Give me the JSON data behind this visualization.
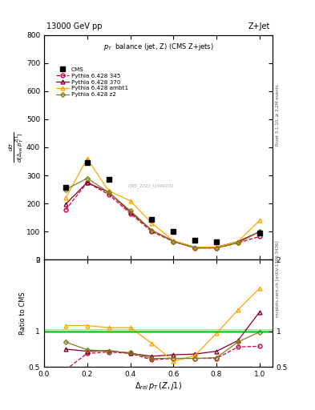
{
  "title_top": "13000 GeV pp",
  "title_right": "Z+Jet",
  "plot_title": "p_{T}  balance (jet, Z) (CMS Z+jets)",
  "xlabel": "$\\Delta_{rel}\\,p_T\\,(Z,j1)$",
  "right_label_top": "Rivet 3.1.10, ≥ 3.2M events",
  "right_label_bot": "mcplots.cern.ch [arXiv:1306.3436]",
  "cms_watermark": "CMS_2021_I1999191",
  "x_values": [
    0.1,
    0.2,
    0.3,
    0.4,
    0.5,
    0.6,
    0.7,
    0.8,
    0.9,
    1.0
  ],
  "cms_y": [
    258,
    345,
    285,
    null,
    145,
    100,
    70,
    63,
    null,
    95
  ],
  "p345_y": [
    178,
    275,
    232,
    165,
    100,
    65,
    42,
    42,
    60,
    83
  ],
  "p370_y": [
    198,
    275,
    240,
    170,
    105,
    67,
    45,
    45,
    65,
    100
  ],
  "pambt1_y": [
    220,
    360,
    245,
    210,
    130,
    68,
    45,
    45,
    65,
    140
  ],
  "pz2_y": [
    250,
    290,
    240,
    175,
    105,
    65,
    42,
    42,
    60,
    100
  ],
  "ratio_p345": [
    0.46,
    0.69,
    0.71,
    0.69,
    0.6,
    0.62,
    0.62,
    0.62,
    0.78,
    0.79
  ],
  "ratio_p370": [
    0.75,
    0.72,
    0.73,
    0.69,
    0.65,
    0.67,
    0.68,
    0.72,
    0.87,
    1.27
  ],
  "ratio_pambt1": [
    1.08,
    1.08,
    1.05,
    1.05,
    0.83,
    0.58,
    0.66,
    0.97,
    1.3,
    1.6
  ],
  "ratio_pz2": [
    0.85,
    0.74,
    0.72,
    0.7,
    0.62,
    0.62,
    0.62,
    0.63,
    0.85,
    0.99
  ],
  "color_cms": "#000000",
  "color_p345": "#cc0044",
  "color_p370": "#880022",
  "color_pambt1": "#ffa500",
  "color_pz2": "#808020",
  "ylim_main": [
    0,
    800
  ],
  "ylim_ratio": [
    0.5,
    2.0
  ],
  "xlim": [
    0.04,
    1.06
  ]
}
